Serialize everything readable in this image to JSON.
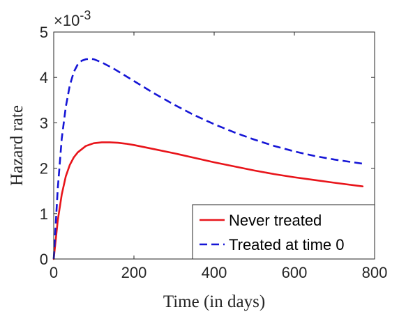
{
  "chart_data": {
    "type": "line",
    "title": "",
    "xlabel": "Time (in days)",
    "ylabel": "Hazard rate",
    "y_exponent_label": "×10",
    "y_exponent_power": "-3",
    "xlim": [
      0,
      800
    ],
    "ylim": [
      0,
      5
    ],
    "xticks": [
      0,
      200,
      400,
      600,
      800
    ],
    "xtick_labels": [
      "0",
      "200",
      "400",
      "600",
      "800"
    ],
    "yticks": [
      0,
      1,
      2,
      3,
      4,
      5
    ],
    "ytick_labels": [
      "0",
      "1",
      "2",
      "3",
      "4",
      "5"
    ],
    "grid": false,
    "legend_position": "bottom-right",
    "series": [
      {
        "name": "Never treated",
        "color": "#e8141a",
        "dash": "solid",
        "x": [
          0,
          10,
          20,
          30,
          40,
          50,
          60,
          80,
          100,
          120,
          140,
          160,
          180,
          200,
          250,
          300,
          350,
          400,
          450,
          500,
          550,
          600,
          650,
          700,
          770
        ],
        "y": [
          0,
          0.85,
          1.42,
          1.82,
          2.07,
          2.24,
          2.35,
          2.49,
          2.55,
          2.57,
          2.57,
          2.56,
          2.54,
          2.51,
          2.42,
          2.33,
          2.23,
          2.13,
          2.04,
          1.95,
          1.87,
          1.8,
          1.74,
          1.68,
          1.6
        ]
      },
      {
        "name": "Treated at time 0",
        "color": "#1515d6",
        "dash": "dashed",
        "x": [
          0,
          10,
          20,
          30,
          40,
          50,
          60,
          70,
          80,
          90,
          100,
          120,
          150,
          200,
          250,
          300,
          350,
          400,
          450,
          500,
          550,
          600,
          650,
          700,
          770
        ],
        "y": [
          0,
          1.55,
          2.65,
          3.35,
          3.82,
          4.12,
          4.29,
          4.37,
          4.4,
          4.41,
          4.4,
          4.33,
          4.19,
          3.92,
          3.65,
          3.4,
          3.17,
          2.97,
          2.79,
          2.63,
          2.49,
          2.37,
          2.27,
          2.19,
          2.1
        ]
      }
    ]
  }
}
